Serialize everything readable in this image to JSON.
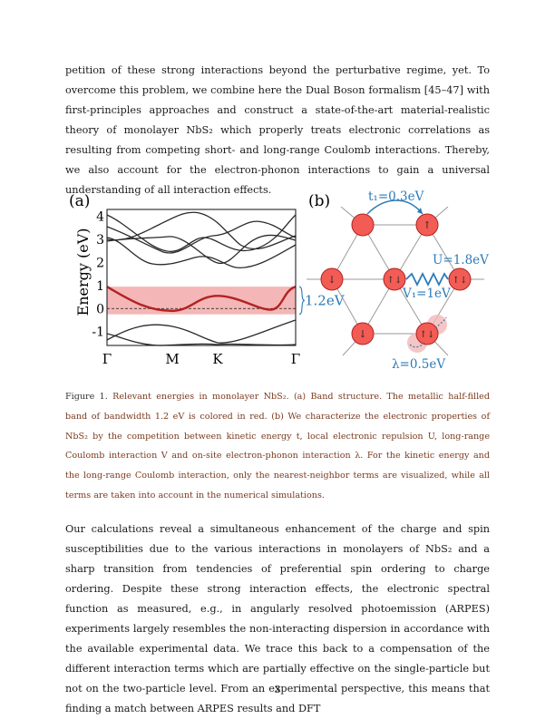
{
  "text": {
    "paragraph_1": "petition of these strong interactions beyond the perturbative regime, yet. To overcome this problem, we combine here the Dual Boson formalism [45–47] with first-principles approaches and construct a state-of-the-art material-realistic theory of monolayer NbS₂ which properly treats electronic correlations as resulting from competing short- and long-range Coulomb interactions. Thereby, we also account for the electron-phonon interactions to gain a universal understanding of all interaction effects.",
    "caption_lead": "Figure 1.",
    "caption_body": "Relevant energies in monolayer NbS₂. (a) Band structure. The metallic half-filled band of bandwidth 1.2 eV is colored in red. (b) We characterize the electronic properties of NbS₂ by the competition between kinetic energy t, local electronic repulsion U, long-range Coulomb interaction V and on-site electron-phonon interaction λ. For the kinetic energy and the long-range Coulomb interaction, only the nearest-neighbor terms are visualized, while all terms are taken into account in the numerical simulations.",
    "paragraph_2": "Our calculations reveal a simultaneous enhancement of the charge and spin susceptibilities due to the various interactions in monolayers of NbS₂ and a sharp transition from tendencies of preferential spin ordering to charge ordering. Despite these strong interaction effects, the electronic spectral function as measured, e.g., in angularly resolved photoemission (ARPES) experiments largely resembles the non-interacting dispersion in accordance with the available experimental data. We trace this back to a compensation of the different interaction terms which are partially effective on the single-particle but not on the two-particle level. From an experimental perspective, this means that finding a match between ARPES results and DFT",
    "page_number": "3"
  },
  "panel_a": {
    "label": "(a)",
    "ylabel": "Energy (eV)",
    "yticks": [
      "4",
      "3",
      "2",
      "1",
      "0",
      "-1"
    ],
    "xticks": [
      "Γ",
      "M",
      "K",
      "Γ"
    ],
    "bandwidth_label": "1.2eV"
  },
  "panel_b": {
    "label": "(b)",
    "t_label": "t₁=0.3eV",
    "u_label": "U=1.8eV",
    "v_label": "V₁=1eV",
    "lambda_label": "λ=0.5eV",
    "site_spins": [
      "↑",
      "↓",
      "↑↓",
      "↑↓",
      "↓",
      "↑↓"
    ]
  },
  "colors": {
    "band_red": "#b22222",
    "band_fill": "#f4b6b6",
    "annotation_blue": "#2a7ab8",
    "site_fill": "#f25c54",
    "caption_text": "#7a3a1e"
  },
  "chart_data": {
    "type": "line",
    "title": "",
    "xlabel": "",
    "ylabel": "Energy (eV)",
    "ylim": [
      -1.6,
      4.3
    ],
    "x": [
      "Γ",
      "M",
      "K",
      "Γ"
    ],
    "series": [
      {
        "name": "",
        "values": [
          0.95,
          -0.1,
          0.55,
          0.95
        ]
      }
    ],
    "shaded_band": [
      -0.25,
      0.95
    ],
    "fermi_level": 0
  }
}
